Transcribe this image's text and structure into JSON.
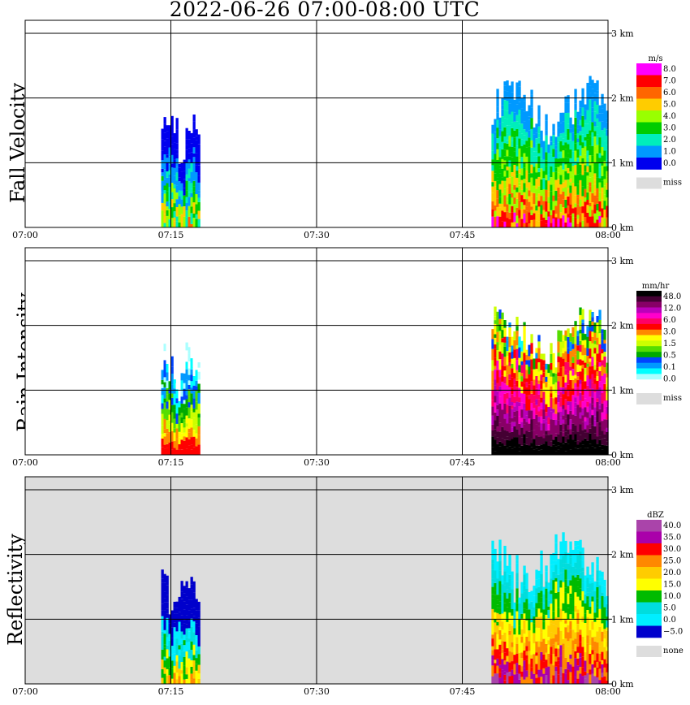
{
  "title": "2022-06-26   07:00-08:00 UTC",
  "x_ticks": [
    "07:00",
    "07:15",
    "07:30",
    "07:45",
    "08:00"
  ],
  "height_ticks": [
    "0 km",
    "1 km",
    "2 km",
    "3 km"
  ],
  "panels": [
    {
      "ylabel": "Fall Velocity",
      "background": "#ffffff",
      "legend": {
        "unit": "m/s",
        "labels": [
          "8.0",
          "7.0",
          "6.0",
          "5.0",
          "4.0",
          "3.0",
          "2.0",
          "1.0",
          "0.0"
        ],
        "colors": [
          "#ff00ff",
          "#ff0000",
          "#ff6600",
          "#ffcc00",
          "#99ff00",
          "#00cc00",
          "#00eebb",
          "#0099ff",
          "#0000ee"
        ],
        "missing_label": "miss"
      }
    },
    {
      "ylabel": "Rain Intensity",
      "background": "#ffffff",
      "legend": {
        "unit": "mm/hr",
        "labels": [
          "48.0",
          "12.0",
          "6.0",
          "3.0",
          "1.5",
          "0.5",
          "0.1",
          "0.0"
        ],
        "colors": [
          "#000000",
          "#440033",
          "#880066",
          "#bb00bb",
          "#ff00cc",
          "#ff0066",
          "#ff0000",
          "#ff8800",
          "#ffff00",
          "#ccff00",
          "#55dd00",
          "#00aa00",
          "#0044ff",
          "#0099ff",
          "#00ffff",
          "#aaffff",
          "#ffffff"
        ],
        "missing_label": "miss"
      }
    },
    {
      "ylabel": "Reflectivity",
      "background": "#dddddd",
      "legend": {
        "unit": "dBZ",
        "labels": [
          "40.0",
          "35.0",
          "30.0",
          "25.0",
          "20.0",
          "15.0",
          "10.0",
          "5.0",
          "0.0",
          "−5.0"
        ],
        "colors": [
          "#aa44aa",
          "#aa00aa",
          "#ff0000",
          "#ff8800",
          "#ffcc00",
          "#ffff00",
          "#00bb00",
          "#00dddd",
          "#00eeff",
          "#0000cc"
        ],
        "missing_label": "none"
      }
    }
  ],
  "chart_data": {
    "type": "heatmap",
    "title": "2022-06-26   07:00-08:00 UTC",
    "x_range": [
      "07:00",
      "08:00"
    ],
    "y_range_km": [
      0,
      3.2
    ],
    "grid": true,
    "height_ticks_km": [
      0,
      1,
      2,
      3
    ],
    "echo_regions": [
      {
        "start": "07:14",
        "end": "07:18",
        "top_km": 1.7
      },
      {
        "start": "07:48",
        "end": "08:00",
        "top_km": 2.2
      }
    ],
    "panels": [
      "Fall Velocity",
      "Rain Intensity",
      "Reflectivity"
    ]
  }
}
